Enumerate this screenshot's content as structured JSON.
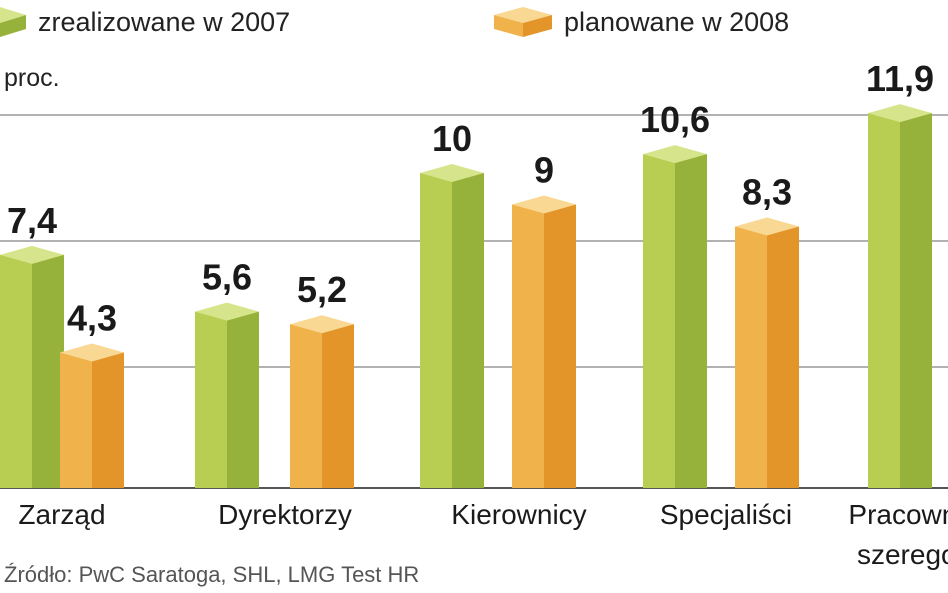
{
  "unit": "proc.",
  "source": "Źródło: PwC Saratoga, SHL, LMG Test HR",
  "colors": {
    "series_2007": "#b7ce52",
    "series_2007_side": "#97b23a",
    "series_2007_top": "#d6e58c",
    "series_2008": "#f0b24a",
    "series_2008_side": "#e3952a",
    "series_2008_top": "#f8d892",
    "gridline": "#999999"
  },
  "chart_data": {
    "type": "bar",
    "ylabel": "proc.",
    "ylim": [
      0,
      14
    ],
    "grid": true,
    "legend": "top",
    "categories": [
      "Zarząd",
      "Dyrektorzy",
      "Kierownicy",
      "Specjaliści",
      "Pracownicy szeregowi"
    ],
    "category_display": [
      [
        "Zarząd"
      ],
      [
        "Dyrektorzy"
      ],
      [
        "Kierownicy"
      ],
      [
        "Specjaliści"
      ],
      [
        "Pracownicy",
        "szeregowi"
      ]
    ],
    "series": [
      {
        "name": "zrealizowane w 2007",
        "values": [
          7.4,
          5.6,
          10,
          10.6,
          11.9
        ],
        "labels": [
          "7,4",
          "5,6",
          "10",
          "10,6",
          "11,9"
        ]
      },
      {
        "name": "planowane w 2008",
        "values": [
          4.3,
          5.2,
          9,
          8.3,
          null
        ],
        "labels": [
          "4,3",
          "5,2",
          "9",
          "8,3",
          ""
        ]
      }
    ]
  }
}
